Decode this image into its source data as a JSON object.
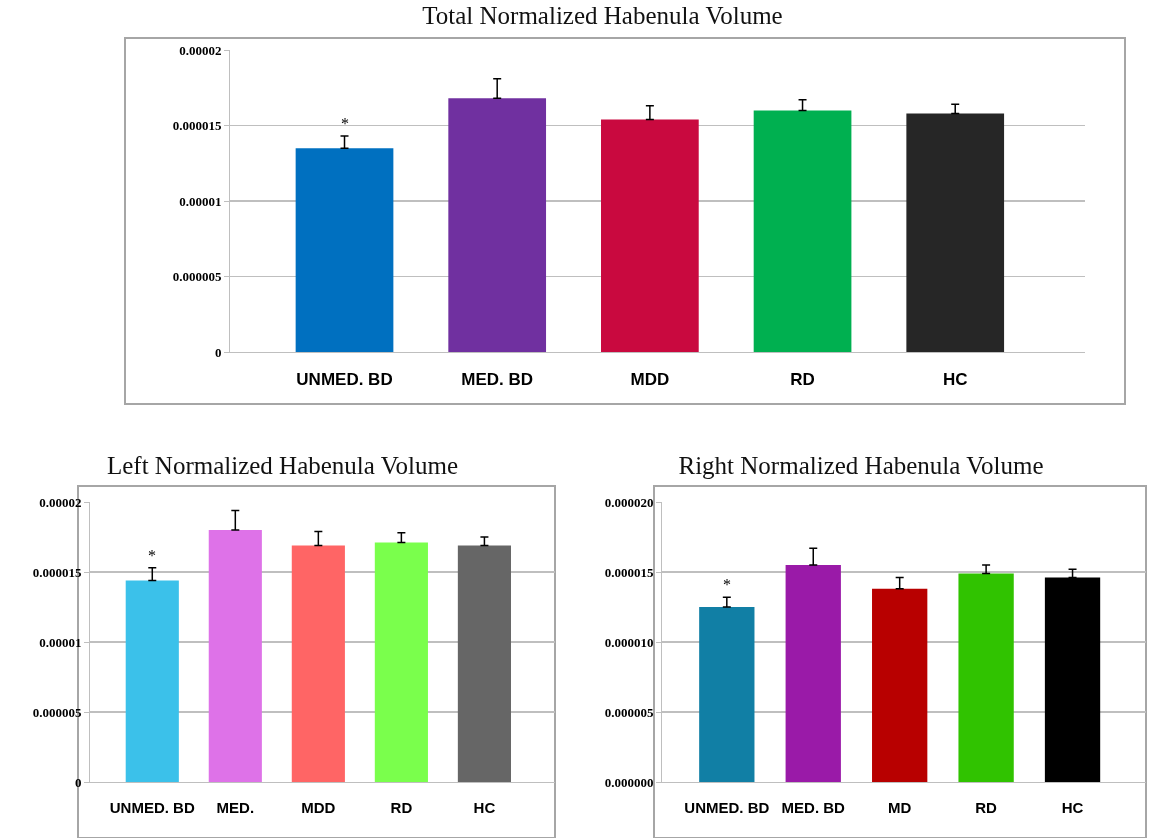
{
  "chart_data": [
    {
      "type": "bar",
      "title": "Total Normalized Habenula Volume",
      "categories": [
        "UNMED. BD",
        "MED. BD",
        "MDD",
        "RD",
        "HC"
      ],
      "values": [
        1.35e-05,
        1.68e-05,
        1.54e-05,
        1.6e-05,
        1.58e-05
      ],
      "colors": [
        "#0070c0",
        "#7030a0",
        "#c9093f",
        "#00b050",
        "#262626"
      ],
      "errors": [
        [
          1.35e-05,
          1.43e-05
        ],
        [
          1.68e-05,
          1.81e-05
        ],
        [
          1.54e-05,
          1.63e-05
        ],
        [
          1.6e-05,
          1.67e-05
        ],
        [
          1.58e-05,
          1.64e-05
        ]
      ],
      "ylim": [
        0,
        2e-05
      ],
      "yticks": [
        0,
        {
          "value": 5e-06,
          "label": "0.000005"
        },
        {
          "value": 1e-05,
          "label": "0.00001"
        },
        {
          "value": 1.5e-05,
          "label": "0.000015"
        },
        {
          "value": 2e-05,
          "label": "0.00002"
        }
      ],
      "grid": "y",
      "annotations": [
        "*"
      ]
    },
    {
      "type": "bar",
      "title": "Left Normalized Habenula Volume",
      "categories": [
        "UNMED. BD",
        "MED.",
        "MDD",
        "RD",
        "HC"
      ],
      "values": [
        1.44e-05,
        1.8e-05,
        1.69e-05,
        1.71e-05,
        1.69e-05
      ],
      "colors": [
        "#3bc1ea",
        "#de72e8",
        "#ff6565",
        "#7aff4c",
        "#666666"
      ],
      "errors": [
        [
          1.44e-05,
          1.53e-05
        ],
        [
          1.8e-05,
          1.94e-05
        ],
        [
          1.69e-05,
          1.79e-05
        ],
        [
          1.71e-05,
          1.78e-05
        ],
        [
          1.69e-05,
          1.75e-05
        ]
      ],
      "ylim": [
        0,
        2e-05
      ],
      "yticks": [
        0,
        {
          "value": 5e-06,
          "label": "0.000005"
        },
        {
          "value": 1e-05,
          "label": "0.00001"
        },
        {
          "value": 1.5e-05,
          "label": "0.000015"
        },
        {
          "value": 2e-05,
          "label": "0.00002"
        }
      ],
      "grid": "y",
      "annotations": [
        "*"
      ]
    },
    {
      "type": "bar",
      "title": "Right Normalized Habenula Volume",
      "categories": [
        "UNMED. BD",
        "MED. BD",
        "MD",
        "RD",
        "HC"
      ],
      "values": [
        1.25e-05,
        1.55e-05,
        1.38e-05,
        1.49e-05,
        1.46e-05
      ],
      "colors": [
        "#117fa5",
        "#9a1aa8",
        "#b80000",
        "#30c300",
        "#000000"
      ],
      "errors": [
        [
          1.25e-05,
          1.32e-05
        ],
        [
          1.55e-05,
          1.67e-05
        ],
        [
          1.38e-05,
          1.46e-05
        ],
        [
          1.49e-05,
          1.55e-05
        ],
        [
          1.46e-05,
          1.52e-05
        ]
      ],
      "ylim": [
        0,
        2e-05
      ],
      "yticks": [
        {
          "value": 0,
          "label": "0.000000"
        },
        {
          "value": 5e-06,
          "label": "0.000005"
        },
        {
          "value": 1e-05,
          "label": "0.000010"
        },
        {
          "value": 1.5e-05,
          "label": "0.000015"
        },
        {
          "value": 2e-05,
          "label": "0.000020"
        }
      ],
      "grid": "y",
      "annotations": [
        "*"
      ]
    }
  ]
}
